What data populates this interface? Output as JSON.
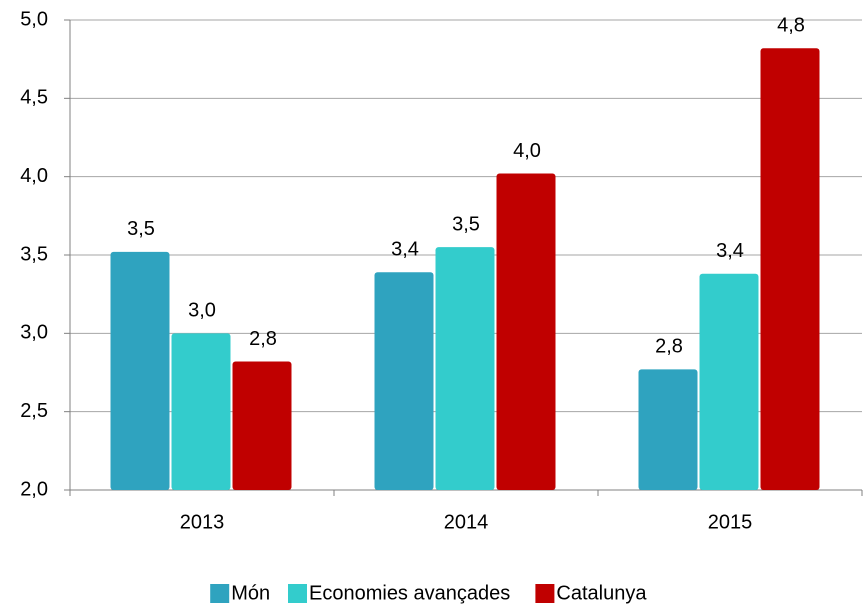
{
  "chart_data": {
    "type": "bar",
    "categories": [
      "2013",
      "2014",
      "2015"
    ],
    "series": [
      {
        "name": "Món",
        "color": "#2fa3bf",
        "values": [
          3.52,
          3.39,
          2.77
        ],
        "value_labels": [
          "3,5",
          "3,4",
          "2,8"
        ]
      },
      {
        "name": "Economies avançades",
        "color": "#33cccc",
        "values": [
          3.0,
          3.55,
          3.38
        ],
        "value_labels": [
          "3,0",
          "3,5",
          "3,4"
        ]
      },
      {
        "name": "Catalunya",
        "color": "#c00000",
        "values": [
          2.82,
          4.02,
          4.82
        ],
        "value_labels": [
          "2,8",
          "4,0",
          "4,8"
        ]
      }
    ],
    "ylim": [
      2.0,
      5.0
    ],
    "yticks": [
      {
        "value": 2.0,
        "label": "2,0"
      },
      {
        "value": 2.5,
        "label": "2,5"
      },
      {
        "value": 3.0,
        "label": "3,0"
      },
      {
        "value": 3.5,
        "label": "3,5"
      },
      {
        "value": 4.0,
        "label": "4,0"
      },
      {
        "value": 4.5,
        "label": "4,5"
      },
      {
        "value": 5.0,
        "label": "5,0"
      }
    ],
    "grid": true,
    "legend": "bottom"
  }
}
